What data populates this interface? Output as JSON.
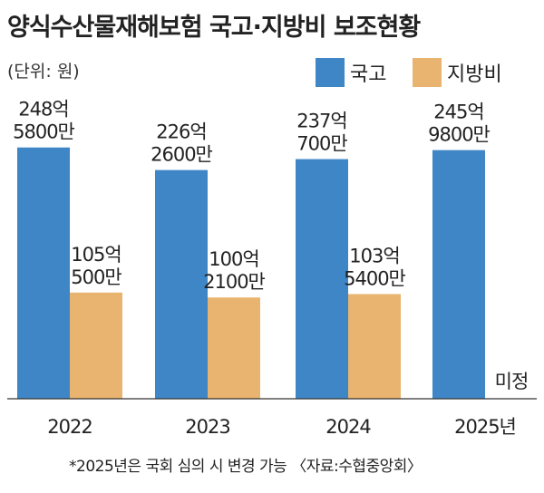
{
  "chart_data": {
    "type": "bar",
    "title": "양식수산물재해보험 국고·지방비 보조현황",
    "unit_label": "(단위: 원)",
    "categories": [
      "2022",
      "2023",
      "2024",
      "2025년"
    ],
    "series": [
      {
        "name": "국고",
        "color": "#3e86c6",
        "values": [
          24858000000,
          22626000000,
          23707000000,
          24598000000
        ],
        "labels": [
          [
            "248억",
            "5800만"
          ],
          [
            "226억",
            "2600만"
          ],
          [
            "237억",
            "700만"
          ],
          [
            "245억",
            "9800만"
          ]
        ]
      },
      {
        "name": "지방비",
        "color": "#e8b46f",
        "values": [
          10505000000,
          10021000000,
          10354000000,
          null
        ],
        "labels": [
          [
            "105억",
            "500만"
          ],
          [
            "100억",
            "2100만"
          ],
          [
            "103억",
            "5400만"
          ],
          [
            "미정"
          ]
        ]
      }
    ],
    "ylim": [
      0,
      26000000000
    ],
    "legend_position": "top-right",
    "grid": false
  },
  "footnote": "*2025년은 국회 심의 시 변경 가능 〈자료:수협중앙회〉"
}
